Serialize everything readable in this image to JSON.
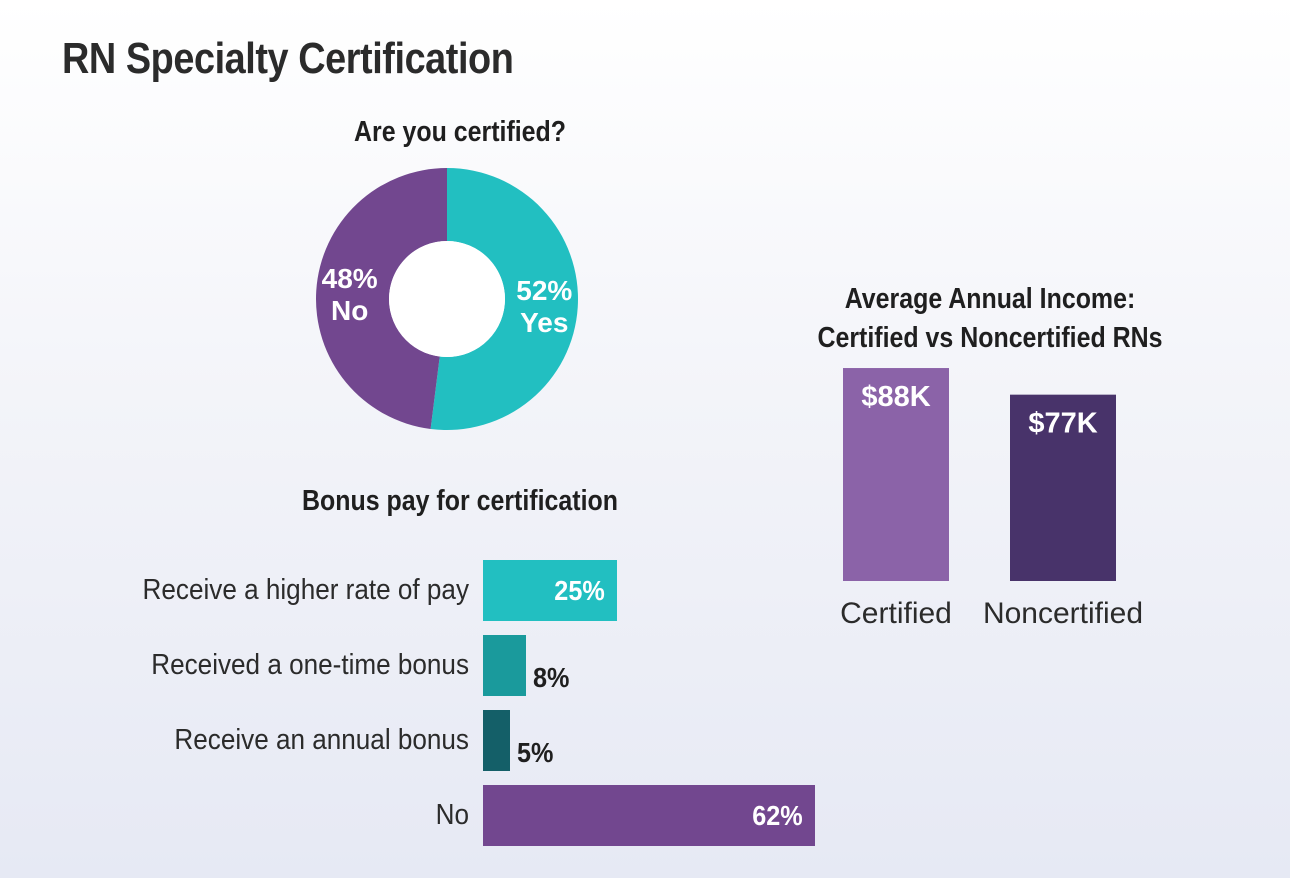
{
  "title": "RN Specialty Certification",
  "chart_data": [
    {
      "type": "pie",
      "title": "Are you certified?",
      "slices": [
        {
          "label": "Yes",
          "value": 52,
          "value_label": "52%",
          "color": "#22bfc1"
        },
        {
          "label": "No",
          "value": 48,
          "value_label": "48%",
          "color": "#72478f"
        }
      ]
    },
    {
      "type": "bar",
      "orientation": "horizontal",
      "title": "Bonus pay for certification",
      "categories": [
        "Receive a higher rate of pay",
        "Received a one-time bonus",
        "Receive an annual bonus",
        "No"
      ],
      "values": [
        25,
        8,
        5,
        62
      ],
      "value_labels": [
        "25%",
        "8%",
        "5%",
        "62%"
      ],
      "colors": [
        "#22bfc1",
        "#1a9a9c",
        "#145f68",
        "#72478f"
      ]
    },
    {
      "type": "bar",
      "orientation": "vertical",
      "title": "Average Annual Income: Certified vs Noncertified RNs",
      "title_lines": [
        "Average Annual Income:",
        "Certified vs Noncertified RNs"
      ],
      "categories": [
        "Certified",
        "Noncertified"
      ],
      "values": [
        88,
        77
      ],
      "value_labels": [
        "$88K",
        "$77K"
      ],
      "colors": [
        "#8b63a8",
        "#48336a"
      ]
    }
  ]
}
